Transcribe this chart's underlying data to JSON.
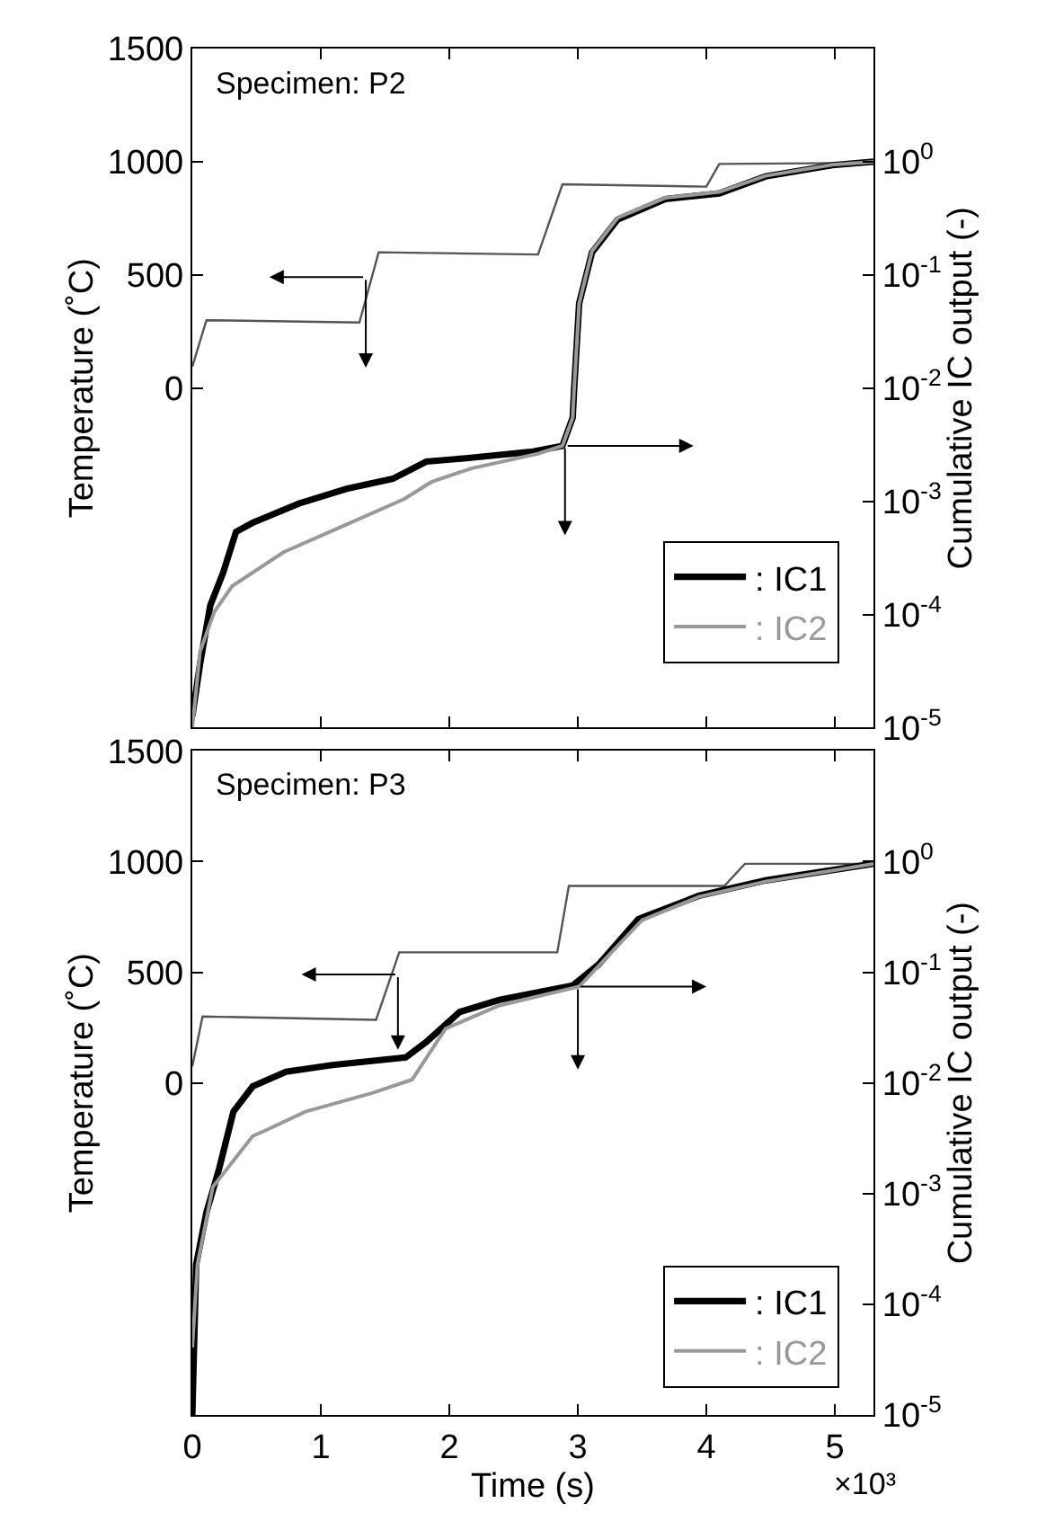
{
  "chart_data": [
    {
      "type": "line",
      "annotations": [
        "Specimen: P2"
      ],
      "ylabel": "Temperature (˚C)",
      "y2label": "Cumulative IC output (-)",
      "xlim": [
        0,
        5.3
      ],
      "xticks": [
        0,
        1,
        2,
        3,
        4,
        5
      ],
      "ylim": [
        -1500,
        1500
      ],
      "yticks": [
        0,
        500,
        1000,
        1500
      ],
      "y2lim": [
        1e-05,
        10
      ],
      "y2ticks": [
        {
          "value": 1e-05,
          "label": "10$^{-5}$"
        },
        {
          "value": 0.0001,
          "label": "10$^{-4}$"
        },
        {
          "value": 0.001,
          "label": "10$^{-3}$"
        },
        {
          "value": 0.01,
          "label": "10$^{-2}$"
        },
        {
          "value": 0.1,
          "label": "10$^{-1}$"
        },
        {
          "value": 1,
          "label": "10$^{0}$"
        }
      ],
      "log": "y2",
      "legend": "bottom right",
      "tick_labels": "y",
      "marker": "none",
      "line_style": "solid",
      "series": [
        {
          "color": "#555555",
          "x": [
            0,
            0.11,
            1.3,
            1.45,
            2.69,
            2.88,
            4.0,
            4.1,
            5.3
          ],
          "values": [
            95,
            300,
            290,
            600,
            590,
            900,
            890,
            990,
            995
          ]
        },
        {
          "name": ": IC1",
          "color": "#000000",
          "axis": "y2",
          "x": [
            0,
            0.06,
            0.14,
            0.24,
            0.34,
            0.47,
            0.83,
            1.2,
            1.56,
            1.82,
            2.13,
            2.65,
            2.88,
            2.96,
            2.97,
            3.01,
            3.11,
            3.31,
            3.68,
            4.1,
            4.46,
            4.98,
            5.3
          ],
          "values": [
            1.26e-05,
            3.63e-05,
            0.00012,
            0.000234,
            0.000537,
            0.000646,
            0.000955,
            0.00129,
            0.00158,
            0.00224,
            0.0024,
            0.00275,
            0.00309,
            0.0055,
            0.0093,
            0.056,
            0.158,
            0.309,
            0.468,
            0.525,
            0.741,
            0.933,
            1.0
          ]
        },
        {
          "name": ": IC2",
          "color": "#999999",
          "axis": "y2",
          "x": [
            0,
            0.06,
            0.17,
            0.31,
            0.71,
            1.13,
            1.65,
            1.86,
            2.17,
            2.69,
            2.88,
            2.96,
            2.97,
            3.01,
            3.11,
            3.31,
            3.68,
            4.1,
            4.46,
            4.98,
            5.3
          ],
          "values": [
            1e-05,
            4.68e-05,
            0.000105,
            0.000178,
            0.000355,
            0.000575,
            0.00105,
            0.00148,
            0.00195,
            0.00263,
            0.00309,
            0.0055,
            0.0093,
            0.056,
            0.162,
            0.32,
            0.48,
            0.54,
            0.75,
            0.94,
            1.0
          ]
        }
      ]
    },
    {
      "type": "line",
      "annotations": [
        "Specimen: P3",
        "×10³"
      ],
      "xlabel": "Time (s)",
      "ylabel": "Temperature (˚C)",
      "y2label": "Cumulative IC output (-)",
      "xlim": [
        0,
        5.3
      ],
      "xticks": [
        0,
        1,
        2,
        3,
        4,
        5
      ],
      "ylim": [
        -1500,
        1500
      ],
      "yticks": [
        0,
        500,
        1000,
        1500
      ],
      "y2lim": [
        1e-05,
        10
      ],
      "y2ticks": [
        {
          "value": 1e-05,
          "label": "10$^{-5}$"
        },
        {
          "value": 0.0001,
          "label": "10$^{-4}$"
        },
        {
          "value": 0.001,
          "label": "10$^{-3}$"
        },
        {
          "value": 0.01,
          "label": "10$^{-2}$"
        },
        {
          "value": 0.1,
          "label": "10$^{-1}$"
        },
        {
          "value": 1,
          "label": "10$^{0}$"
        }
      ],
      "log": "y2",
      "legend": "bottom right",
      "marker": "none",
      "line_style": "solid",
      "series": [
        {
          "color": "#555555",
          "x": [
            0,
            0.08,
            1.43,
            1.61,
            2.84,
            2.93,
            4.14,
            4.3,
            5.3
          ],
          "values": [
            75,
            300,
            285,
            590,
            590,
            890,
            890,
            990,
            990
          ]
        },
        {
          "name": ": IC1",
          "color": "#000000",
          "axis": "y2",
          "x": [
            0,
            0.03,
            0.11,
            0.21,
            0.32,
            0.47,
            0.73,
            1.09,
            1.66,
            1.82,
            2.08,
            2.39,
            2.96,
            3.16,
            3.47,
            3.94,
            4.46,
            5.3
          ],
          "values": [
            1e-05,
            0.000229,
            0.000676,
            0.0017,
            0.0055,
            0.0093,
            0.0126,
            0.0145,
            0.017,
            0.0234,
            0.0437,
            0.0562,
            0.0759,
            0.117,
            0.302,
            0.49,
            0.676,
            0.955
          ]
        },
        {
          "name": ": IC2",
          "color": "#999999",
          "axis": "y2",
          "x": [
            0,
            0.04,
            0.16,
            0.47,
            0.57,
            0.88,
            1.4,
            1.71,
            1.97,
            2.39,
            3.01,
            3.27,
            3.5,
            3.94,
            4.46,
            5.3
          ],
          "values": [
            4.07e-05,
            0.000229,
            0.00115,
            0.00331,
            0.00372,
            0.0055,
            0.0081,
            0.0107,
            0.0309,
            0.0501,
            0.0741,
            0.155,
            0.295,
            0.48,
            0.66,
            0.955
          ]
        }
      ]
    }
  ]
}
